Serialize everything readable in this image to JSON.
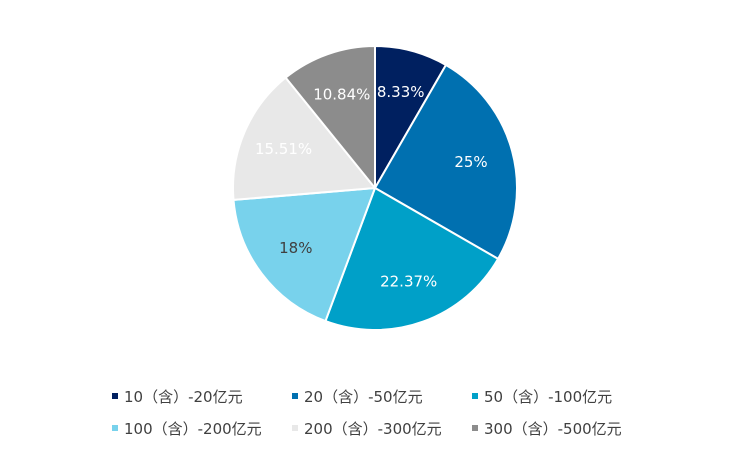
{
  "chart_data": {
    "type": "pie",
    "categories": [
      "10（含）-20亿元",
      "20（含）-50亿元",
      "50（含）-100亿元",
      "100（含）-200亿元",
      "200（含）-300亿元",
      "300（含）-500亿元"
    ],
    "values": [
      8.33,
      25,
      22.37,
      18,
      15.51,
      10.84
    ],
    "labels": [
      "8.33%",
      "25%",
      "22.37%",
      "18%",
      "15.51%",
      "10.84%"
    ],
    "colors": [
      "#002060",
      "#0070B0",
      "#00A0C8",
      "#78D2EC",
      "#E8E8E8",
      "#8C8C8C"
    ],
    "label_colors": [
      "#FFFFFF",
      "#FFFFFF",
      "#FFFFFF",
      "#404040",
      "#FFFFFF",
      "#FFFFFF"
    ],
    "start_angle_deg": 0,
    "direction": "clockwise",
    "legend_position": "bottom"
  }
}
